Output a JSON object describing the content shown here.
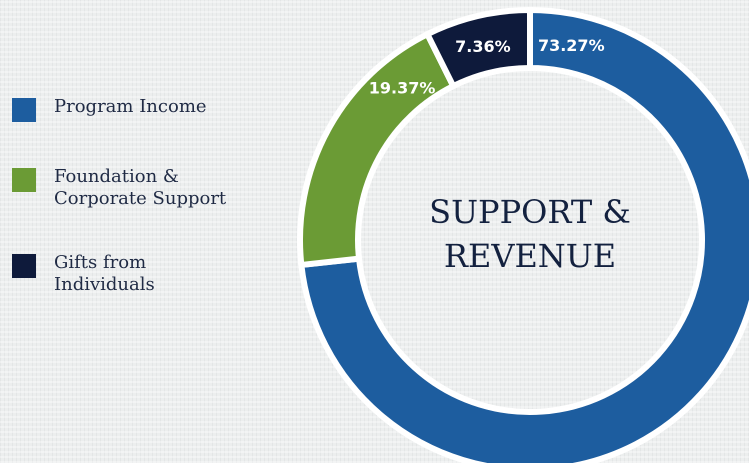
{
  "chart_data": {
    "type": "pie",
    "title": "SUPPORT & REVENUE",
    "categories": [
      "Program Income",
      "Foundation & Corporate Support",
      "Gifts from Individuals"
    ],
    "values": [
      73.27,
      19.37,
      7.36
    ],
    "value_labels": [
      "73.27%",
      "19.37%",
      "7.36%"
    ],
    "colors": [
      "#1d5d9f",
      "#6b9b35",
      "#0e1a3b"
    ],
    "legend": "left"
  }
}
